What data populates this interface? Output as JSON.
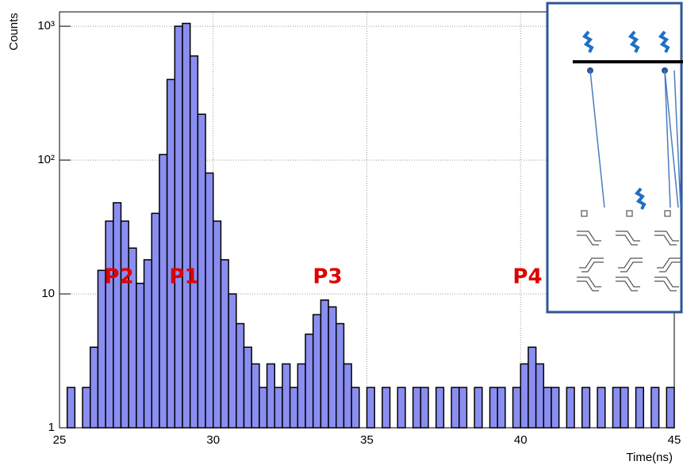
{
  "chart_data": {
    "type": "histogram",
    "x_label": "Time(ns)",
    "y_label": "Counts",
    "bins": [
      25,
      25.25,
      25.5,
      25.75,
      26,
      26.25,
      26.5,
      26.75,
      27,
      27.25,
      27.5,
      27.75,
      28,
      28.25,
      28.5,
      28.75,
      29,
      29.25,
      29.5,
      29.75,
      30,
      30.25,
      30.5,
      30.75,
      31,
      31.25,
      31.5,
      31.75,
      32,
      32.25,
      32.5,
      32.75,
      33,
      33.25,
      33.5,
      33.75,
      34,
      34.25,
      34.5,
      34.75,
      35,
      35.25,
      35.5,
      35.75,
      36,
      36.25,
      36.5,
      36.75,
      37,
      37.25,
      37.5,
      37.75,
      38,
      38.25,
      38.5,
      38.75,
      39,
      39.25,
      39.5,
      39.75,
      40,
      40.25,
      40.5,
      40.75,
      41,
      41.25,
      41.5,
      41.75,
      42,
      42.25,
      42.5,
      42.75,
      43,
      43.25,
      43.5,
      43.75,
      44,
      44.25,
      44.5,
      44.75,
      45
    ],
    "values": [
      1,
      2,
      1,
      2,
      4,
      15,
      35,
      48,
      35,
      22,
      12,
      18,
      40,
      110,
      400,
      1000,
      1050,
      600,
      220,
      80,
      35,
      18,
      10,
      6,
      4,
      3,
      2,
      3,
      2,
      3,
      2,
      3,
      5,
      7,
      9,
      8,
      6,
      3,
      2,
      1,
      2,
      1,
      2,
      1,
      2,
      1,
      2,
      2,
      1,
      2,
      1,
      2,
      2,
      1,
      2,
      1,
      2,
      2,
      1,
      2,
      3,
      4,
      3,
      2,
      2,
      1,
      2,
      1,
      2,
      1,
      2,
      1,
      2,
      2,
      1,
      2,
      1,
      2,
      1,
      2
    ],
    "color": "#8a8ef0",
    "xlim": [
      25,
      45
    ],
    "xticks": [
      25,
      30,
      35,
      40,
      45
    ],
    "ylim": [
      1,
      1280
    ],
    "log_y": true,
    "yticks": [
      1,
      10,
      {
        "value": 100,
        "label": "10²"
      },
      {
        "value": 1000,
        "label": "10³"
      }
    ],
    "grid": true,
    "annotations": [
      "P2",
      "P1",
      "P3",
      "P4"
    ]
  }
}
